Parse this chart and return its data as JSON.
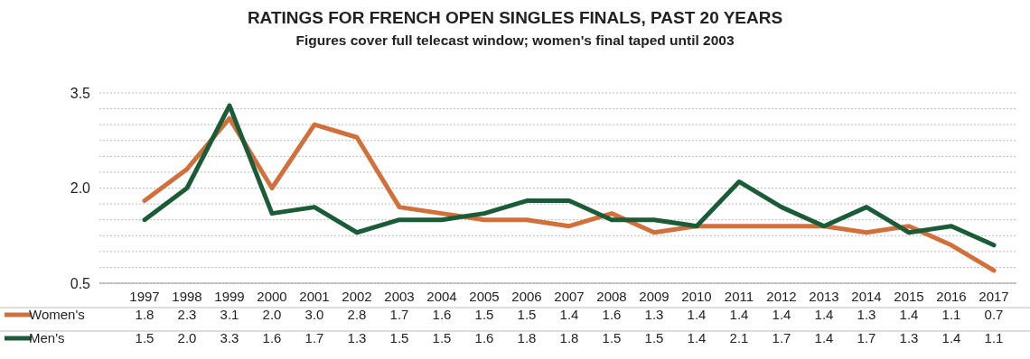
{
  "chart_data": {
    "type": "line",
    "title": "RATINGS FOR FRENCH OPEN SINGLES FINALS, PAST 20 YEARS",
    "subtitle": "Figures cover full telecast window; women's final taped until 2003",
    "categories": [
      "1997",
      "1998",
      "1999",
      "2000",
      "2001",
      "2002",
      "2003",
      "2004",
      "2005",
      "2006",
      "2007",
      "2008",
      "2009",
      "2010",
      "2011",
      "2012",
      "2013",
      "2014",
      "2015",
      "2016",
      "2017"
    ],
    "series": [
      {
        "name": "Women's",
        "color": "#d2703c",
        "values": [
          1.8,
          2.3,
          3.1,
          2.0,
          3.0,
          2.8,
          1.7,
          1.6,
          1.5,
          1.5,
          1.4,
          1.6,
          1.3,
          1.4,
          1.4,
          1.4,
          1.4,
          1.3,
          1.4,
          1.1,
          0.7
        ],
        "value_labels": [
          "1.8",
          "2.3",
          "3.1",
          "2.0",
          "3.0",
          "2.8",
          "1.7",
          "1.6",
          "1.5",
          "1.5",
          "1.4",
          "1.6",
          "1.3",
          "1.4",
          "1.4",
          "1.4",
          "1.4",
          "1.3",
          "1.4",
          "1.1",
          "0.7"
        ]
      },
      {
        "name": "Men's",
        "color": "#1a5c38",
        "values": [
          1.5,
          2.0,
          3.3,
          1.6,
          1.7,
          1.3,
          1.5,
          1.5,
          1.6,
          1.8,
          1.8,
          1.5,
          1.5,
          1.4,
          2.1,
          1.7,
          1.4,
          1.7,
          1.3,
          1.4,
          1.1
        ],
        "value_labels": [
          "1.5",
          "2.0",
          "3.3",
          "1.6",
          "1.7",
          "1.3",
          "1.5",
          "1.5",
          "1.6",
          "1.8",
          "1.8",
          "1.5",
          "1.5",
          "1.4",
          "2.1",
          "1.7",
          "1.4",
          "1.7",
          "1.3",
          "1.4",
          "1.1"
        ]
      }
    ],
    "ylim": [
      0.5,
      3.5
    ],
    "yticks": [
      0.5,
      {
        "value": 0.75,
        "label": null
      },
      {
        "value": 1.0,
        "label": null
      },
      {
        "value": 1.25,
        "label": null
      },
      {
        "value": 1.5,
        "label": null
      },
      {
        "value": 1.75,
        "label": null
      },
      {
        "value": 2,
        "label": "2.0"
      },
      {
        "value": 2.25,
        "label": null
      },
      {
        "value": 2.5,
        "label": null
      },
      {
        "value": 2.75,
        "label": null
      },
      {
        "value": 3.0,
        "label": null
      },
      {
        "value": 3.25,
        "label": null
      },
      3.5
    ],
    "grid": "y",
    "legend": "bottom",
    "line_style": "solid",
    "marker": "none"
  }
}
